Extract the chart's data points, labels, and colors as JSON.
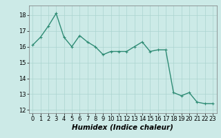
{
  "x": [
    0,
    1,
    2,
    3,
    4,
    5,
    6,
    7,
    8,
    9,
    10,
    11,
    12,
    13,
    14,
    15,
    16,
    17,
    18,
    19,
    20,
    21,
    22,
    23
  ],
  "y": [
    16.1,
    16.6,
    17.3,
    18.1,
    16.6,
    16.0,
    16.7,
    16.3,
    16.0,
    15.5,
    15.7,
    15.7,
    15.7,
    16.0,
    16.3,
    15.7,
    15.8,
    15.8,
    13.1,
    12.9,
    13.1,
    12.5,
    12.4,
    12.4
  ],
  "line_color": "#2e8b74",
  "marker": "+",
  "marker_size": 3,
  "linewidth": 1.0,
  "xlabel": "Humidex (Indice chaleur)",
  "xlim": [
    -0.5,
    23.5
  ],
  "ylim": [
    11.8,
    18.6
  ],
  "yticks": [
    12,
    13,
    14,
    15,
    16,
    17,
    18
  ],
  "xticks": [
    0,
    1,
    2,
    3,
    4,
    5,
    6,
    7,
    8,
    9,
    10,
    11,
    12,
    13,
    14,
    15,
    16,
    17,
    18,
    19,
    20,
    21,
    22,
    23
  ],
  "bg_color": "#cceae7",
  "grid_color": "#aad4d0",
  "tick_fontsize": 6,
  "xlabel_fontsize": 7.5,
  "xlabel_bold": true
}
